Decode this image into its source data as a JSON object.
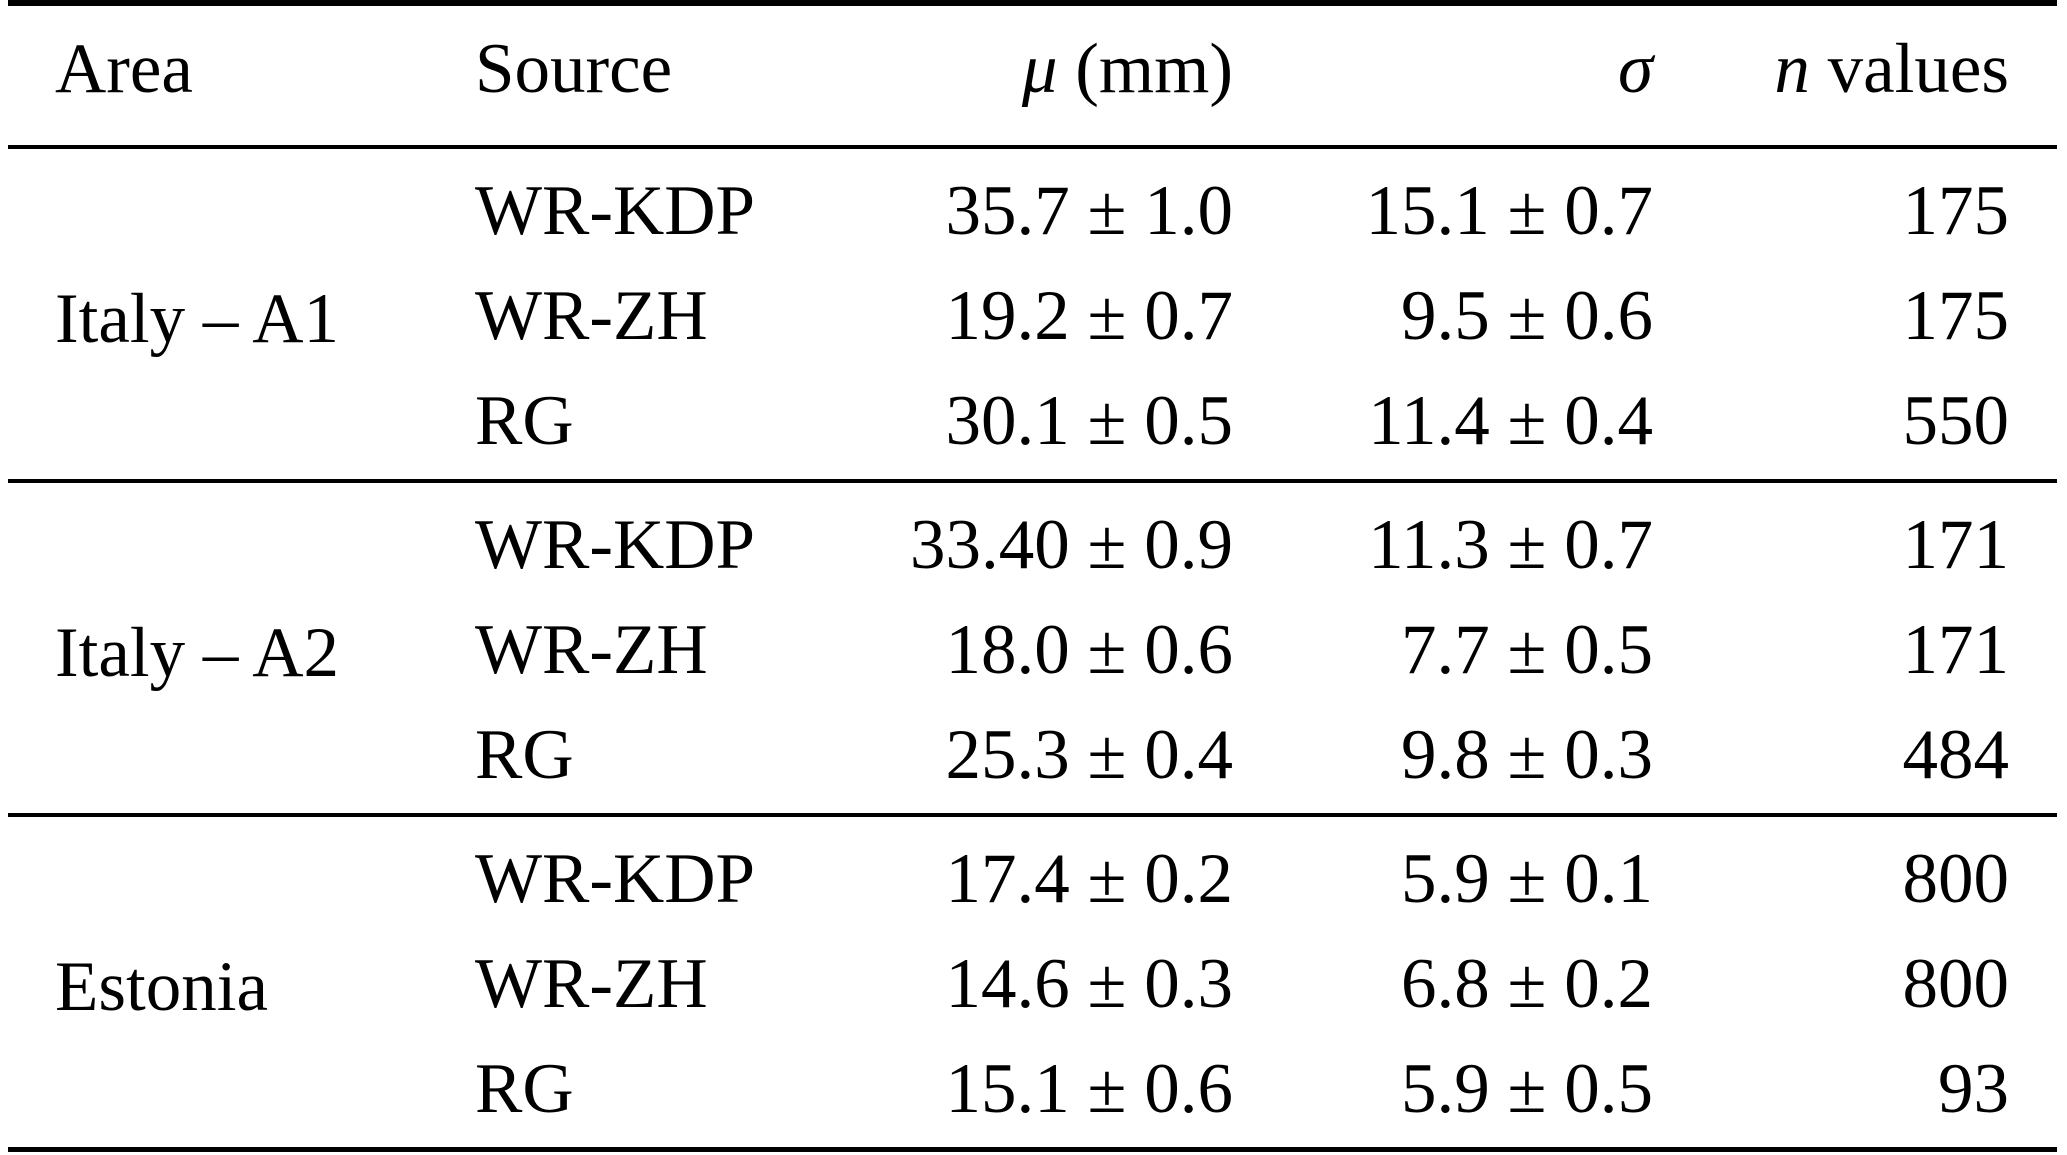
{
  "table": {
    "header": {
      "area": "Area",
      "source": "Source",
      "mu_symbol": "μ",
      "mu_unit": " (mm)",
      "sigma_symbol": "σ",
      "n_symbol": "n",
      "n_rest": " values"
    },
    "groups": [
      {
        "area": "Italy – A1",
        "rows": [
          {
            "source": "WR-KDP",
            "mu": "35.7 ± 1.0",
            "sigma": "15.1 ± 0.7",
            "n": "175"
          },
          {
            "source": "WR-ZH",
            "mu": "19.2 ± 0.7",
            "sigma": "9.5 ± 0.6",
            "n": "175"
          },
          {
            "source": "RG",
            "mu": "30.1 ± 0.5",
            "sigma": "11.4 ± 0.4",
            "n": "550"
          }
        ]
      },
      {
        "area": "Italy – A2",
        "rows": [
          {
            "source": "WR-KDP",
            "mu": "33.40 ± 0.9",
            "sigma": "11.3 ± 0.7",
            "n": "171"
          },
          {
            "source": "WR-ZH",
            "mu": "18.0 ± 0.6",
            "sigma": "7.7 ± 0.5",
            "n": "171"
          },
          {
            "source": "RG",
            "mu": "25.3 ± 0.4",
            "sigma": "9.8 ± 0.3",
            "n": "484"
          }
        ]
      },
      {
        "area": "Estonia",
        "rows": [
          {
            "source": "WR-KDP",
            "mu": "17.4 ± 0.2",
            "sigma": "5.9 ± 0.1",
            "n": "800"
          },
          {
            "source": "WR-ZH",
            "mu": "14.6 ± 0.3",
            "sigma": "6.8 ± 0.2",
            "n": "800"
          },
          {
            "source": "RG",
            "mu": "15.1 ± 0.6",
            "sigma": "5.9 ± 0.5",
            "n": "93"
          }
        ]
      }
    ]
  }
}
